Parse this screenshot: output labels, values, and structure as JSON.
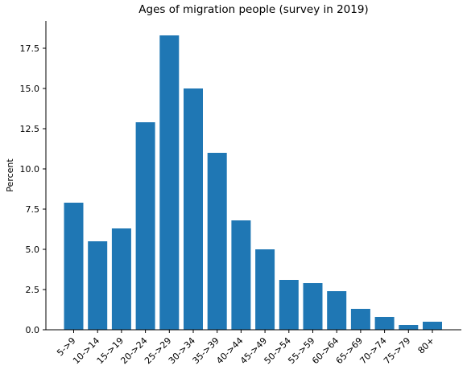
{
  "chart_data": {
    "type": "bar",
    "title": "Ages of migration people (survey in 2019)",
    "xlabel": "",
    "ylabel": "Percent",
    "categories": [
      "5->9",
      "10->14",
      "15->19",
      "20->24",
      "25->29",
      "30->34",
      "35->39",
      "40->44",
      "45->49",
      "50->54",
      "55->59",
      "60->64",
      "65->69",
      "70->74",
      "75->79",
      "80+"
    ],
    "values": [
      7.9,
      5.5,
      6.3,
      12.9,
      18.3,
      15.0,
      11.0,
      6.8,
      5.0,
      3.1,
      2.9,
      2.4,
      1.3,
      0.8,
      0.3,
      0.5
    ],
    "yticks": [
      "0.0",
      "2.5",
      "5.0",
      "7.5",
      "10.0",
      "12.5",
      "15.0",
      "17.5"
    ],
    "ylim": [
      0,
      19.2
    ],
    "bar_color": "#1f77b4",
    "grid": false,
    "legend": "none"
  }
}
